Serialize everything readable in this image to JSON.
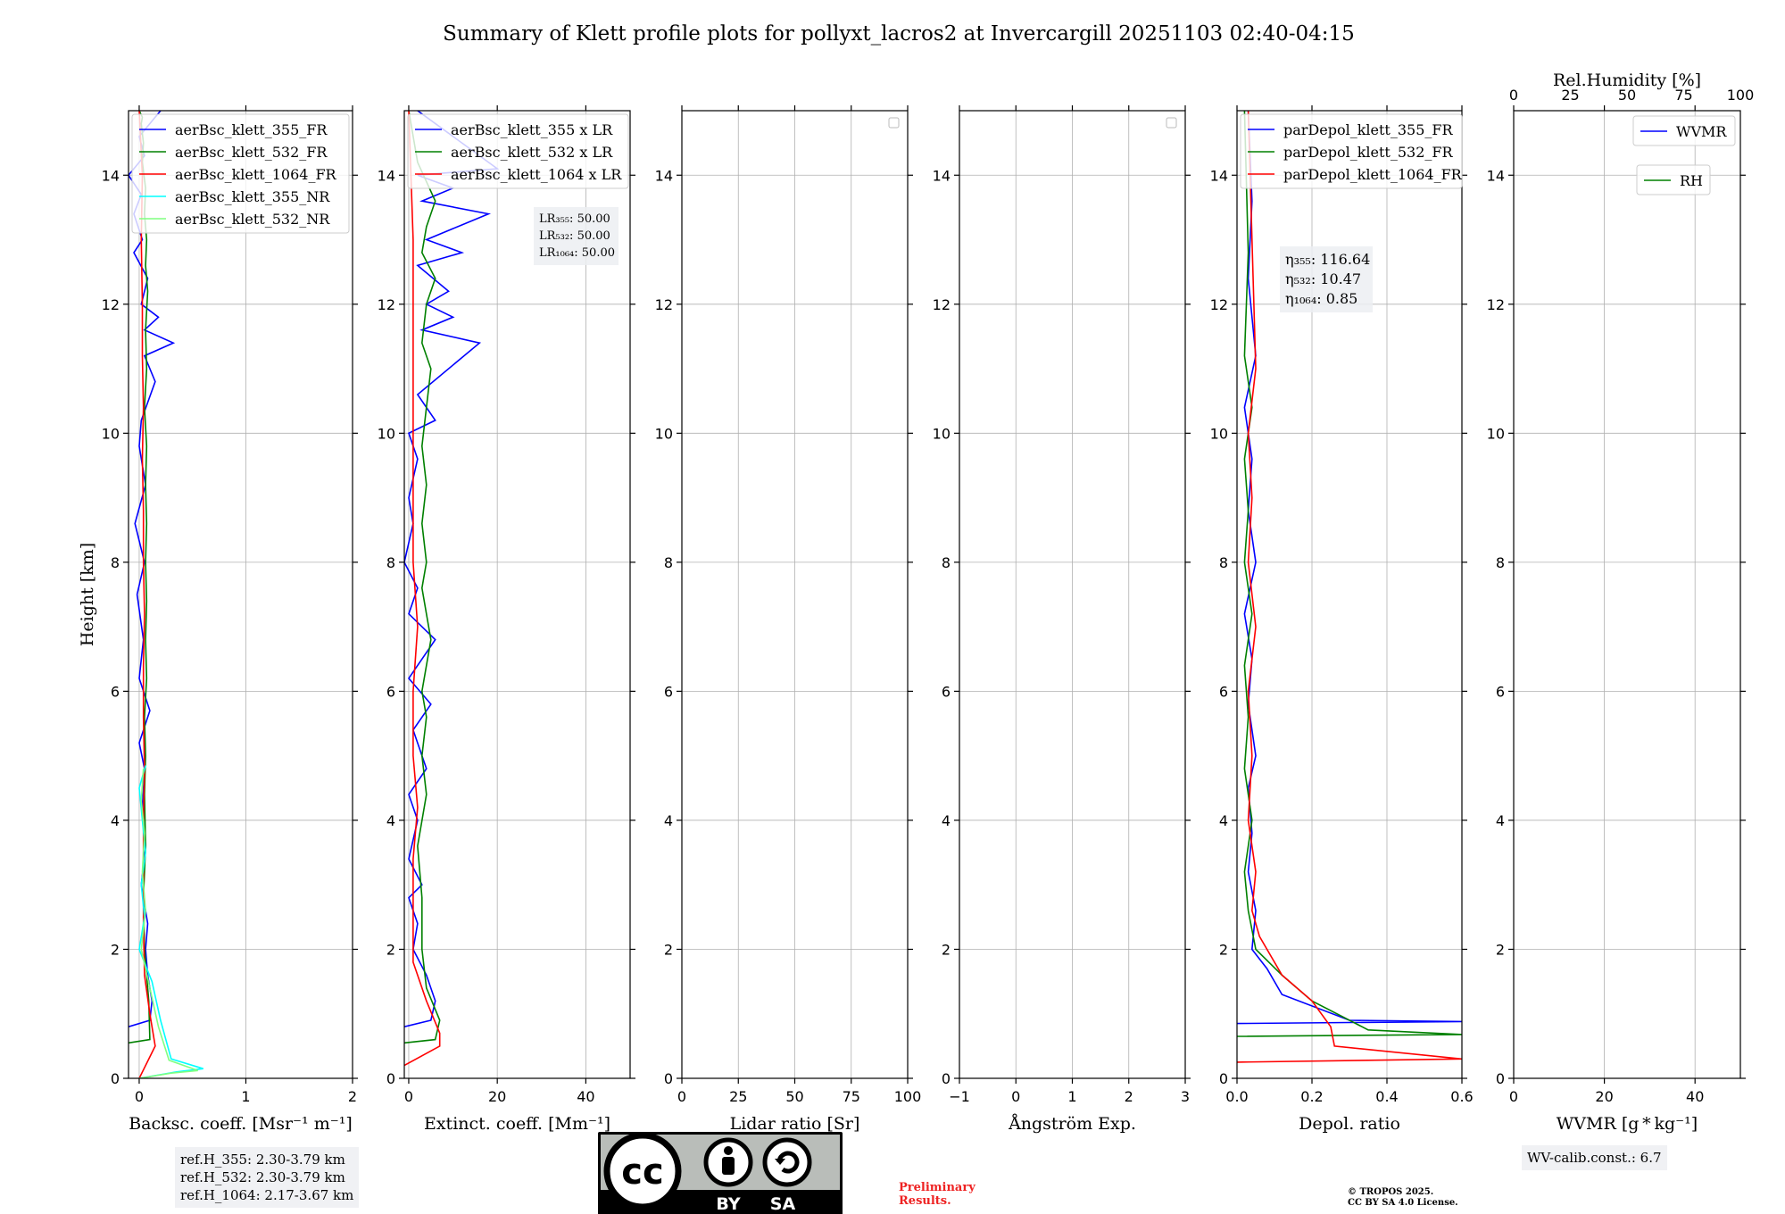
{
  "title": "Summary of Klett profile plots for pollyxt_lacros2 at Invercargill 20251103 02:40-04:15",
  "colors": {
    "blue": "#0000ff",
    "green": "#008000",
    "red": "#ff0000",
    "cyan": "#00ffff",
    "lightgreen": "#80ff80"
  },
  "chart_data": [
    {
      "id": "bsc",
      "type": "line",
      "ylabel": "Height [km]",
      "xlabel": "Backsc. coeff. [Msr⁻¹ m⁻¹]",
      "xlim": [
        -0.1,
        2
      ],
      "ylim": [
        0,
        15
      ],
      "xticks": [
        0,
        1,
        2
      ],
      "yticks": [
        0,
        2,
        4,
        6,
        8,
        10,
        12,
        14
      ],
      "legend": [
        "aerBsc_klett_355_FR",
        "aerBsc_klett_532_FR",
        "aerBsc_klett_1064_FR",
        "aerBsc_klett_355_NR",
        "aerBsc_klett_532_NR"
      ],
      "legend_colors": [
        "blue",
        "green",
        "red",
        "cyan",
        "lightgreen"
      ],
      "series": [
        {
          "name": "aerBsc_klett_355_FR",
          "color": "blue",
          "x": [
            -0.1,
            0.1,
            0.12,
            0.08,
            0.06,
            0.08,
            0.02,
            0.06,
            0.03,
            0.05,
            0.0,
            0.1,
            0.0,
            0.04,
            -0.02,
            0.05,
            -0.04,
            0.06,
            0.0,
            0.02,
            0.15,
            0.05,
            0.32,
            0.05,
            0.18,
            0.02,
            0.08,
            -0.05,
            0.03,
            -0.05,
            0.02,
            -0.1,
            0.05,
            0.0,
            0.2
          ],
          "y": [
            0.8,
            0.9,
            1.2,
            1.6,
            2.0,
            2.4,
            3.0,
            3.6,
            4.2,
            4.8,
            5.2,
            5.7,
            6.2,
            6.8,
            7.5,
            8.0,
            8.6,
            9.2,
            9.8,
            10.2,
            10.8,
            11.2,
            11.4,
            11.6,
            11.8,
            12.0,
            12.4,
            12.8,
            13.0,
            13.4,
            13.7,
            14.0,
            14.3,
            14.6,
            15.0
          ]
        },
        {
          "name": "aerBsc_klett_532_FR",
          "color": "green",
          "x": [
            -0.1,
            0.1,
            0.09,
            0.05,
            0.04,
            0.06,
            0.05,
            0.06,
            0.05,
            0.07,
            0.06,
            0.07,
            0.06,
            0.07,
            0.06,
            0.07,
            0.05,
            0.07,
            0.06,
            0.08,
            0.06,
            0.07,
            0.05,
            0.06,
            0.03,
            0.04,
            0.02,
            0.03,
            0.0
          ],
          "y": [
            0.55,
            0.6,
            1.2,
            2.0,
            2.8,
            3.6,
            4.4,
            5.0,
            5.6,
            6.2,
            6.8,
            7.4,
            8.0,
            8.6,
            9.2,
            9.8,
            10.4,
            11.0,
            11.6,
            12.2,
            12.6,
            13.0,
            13.4,
            13.8,
            14.2,
            14.5,
            14.8,
            14.9,
            15.0
          ]
        },
        {
          "name": "aerBsc_klett_1064_FR",
          "color": "red",
          "x": [
            0.0,
            0.15,
            0.1,
            0.05,
            0.04,
            0.04,
            0.04,
            0.05,
            0.04,
            0.04,
            0.05,
            0.04,
            0.04,
            0.03,
            0.04,
            0.03,
            0.03,
            0.02,
            0.03,
            0.0
          ],
          "y": [
            0.0,
            0.5,
            1.0,
            1.6,
            2.4,
            3.2,
            4.0,
            4.8,
            5.6,
            6.4,
            7.2,
            8.0,
            8.8,
            9.6,
            10.4,
            11.2,
            12.0,
            13.0,
            14.0,
            15.0
          ]
        },
        {
          "name": "aerBsc_klett_355_NR",
          "color": "cyan",
          "x": [
            0.0,
            0.35,
            0.6,
            0.3,
            0.2,
            0.12,
            0.0,
            0.05,
            0.02,
            0.06,
            0.03,
            0.0,
            0.06
          ],
          "y": [
            0.0,
            0.1,
            0.15,
            0.3,
            0.9,
            1.5,
            2.0,
            2.5,
            3.0,
            3.5,
            4.0,
            4.5,
            4.85
          ]
        },
        {
          "name": "aerBsc_klett_532_NR",
          "color": "lightgreen",
          "x": [
            0.0,
            0.3,
            0.55,
            0.28,
            0.18,
            0.1,
            0.02,
            0.06,
            0.03,
            0.05,
            0.02,
            0.04
          ],
          "y": [
            0.0,
            0.08,
            0.12,
            0.28,
            0.8,
            1.4,
            2.0,
            2.6,
            3.2,
            3.8,
            4.3,
            4.8
          ]
        }
      ]
    },
    {
      "id": "ext",
      "type": "line",
      "xlabel": "Extinct. coeff. [Mm⁻¹]",
      "xlim": [
        -1,
        50
      ],
      "ylim": [
        0,
        15
      ],
      "xticks": [
        0,
        20,
        40
      ],
      "yticks": [
        0,
        2,
        4,
        6,
        8,
        10,
        12,
        14
      ],
      "legend": [
        "aerBsc_klett_355 x LR",
        "aerBsc_klett_532 x LR",
        "aerBsc_klett_1064 x LR"
      ],
      "legend_colors": [
        "blue",
        "green",
        "red"
      ],
      "annotation": [
        "LR₃₅₅: 50.00",
        "LR₅₃₂: 50.00",
        "LR₁₀₆₄: 50.00"
      ],
      "series": [
        {
          "name": "aerBsc_klett_355 x LR",
          "color": "blue",
          "x": [
            -1,
            5,
            6,
            4,
            1,
            2,
            0,
            3,
            0,
            2,
            0,
            4,
            1,
            5,
            0,
            6,
            0,
            2,
            -1,
            1,
            0,
            2,
            0,
            6,
            2,
            16,
            3,
            10,
            4,
            9,
            2,
            12,
            4,
            18,
            3,
            10,
            2,
            20,
            2
          ],
          "y": [
            0.8,
            0.9,
            1.2,
            1.6,
            2.0,
            2.4,
            2.8,
            3.0,
            3.4,
            4.0,
            4.4,
            4.8,
            5.4,
            5.8,
            6.2,
            6.8,
            7.2,
            7.6,
            8.0,
            8.6,
            9.0,
            9.6,
            10.0,
            10.2,
            10.6,
            11.4,
            11.6,
            11.8,
            12.0,
            12.2,
            12.6,
            12.8,
            13.0,
            13.4,
            13.6,
            13.8,
            14.0,
            14.1,
            15.0
          ]
        },
        {
          "name": "aerBsc_klett_532 x LR",
          "color": "green",
          "x": [
            -1,
            6,
            7,
            4,
            3,
            3,
            2,
            4,
            3,
            4,
            3,
            4,
            5,
            4,
            3,
            4,
            3,
            4,
            3,
            4,
            5,
            3,
            4,
            6,
            3,
            4,
            6,
            2,
            0
          ],
          "y": [
            0.55,
            0.6,
            0.9,
            1.4,
            2.0,
            2.8,
            3.6,
            4.4,
            5.0,
            5.6,
            6.0,
            6.4,
            6.8,
            7.2,
            7.6,
            8.0,
            8.6,
            9.2,
            9.8,
            10.4,
            11.0,
            11.4,
            12.0,
            12.4,
            12.8,
            13.2,
            13.6,
            14.2,
            15.0
          ]
        },
        {
          "name": "aerBsc_klett_1064 x LR",
          "color": "red",
          "x": [
            -1,
            7,
            7,
            4,
            1,
            1,
            1,
            2,
            1,
            1,
            2,
            1,
            1,
            1,
            1,
            1,
            1,
            0
          ],
          "y": [
            0.2,
            0.5,
            0.7,
            1.2,
            1.8,
            2.6,
            3.4,
            4.2,
            5.0,
            6.0,
            7.0,
            8.0,
            9.0,
            10.0,
            11.0,
            12.0,
            13.0,
            15.0
          ]
        }
      ]
    },
    {
      "id": "lr",
      "type": "line",
      "xlabel": "Lidar ratio [Sr]",
      "xlim": [
        0,
        100
      ],
      "ylim": [
        0,
        15
      ],
      "xticks": [
        0,
        25,
        50,
        75,
        100
      ],
      "yticks": [
        0,
        2,
        4,
        6,
        8,
        10,
        12,
        14
      ],
      "legend": [],
      "legend_colors": [],
      "series": []
    },
    {
      "id": "ang",
      "type": "line",
      "xlabel": "Ångström Exp.",
      "xlim": [
        -1,
        3
      ],
      "ylim": [
        0,
        15
      ],
      "xticks": [
        -1,
        0,
        1,
        2,
        3
      ],
      "yticks": [
        0,
        2,
        4,
        6,
        8,
        10,
        12,
        14
      ],
      "legend": [],
      "legend_colors": [],
      "series": []
    },
    {
      "id": "dep",
      "type": "line",
      "xlabel": "Depol. ratio",
      "xlim": [
        0,
        0.6
      ],
      "ylim": [
        0,
        15
      ],
      "xticks": [
        0.0,
        0.2,
        0.4,
        0.6
      ],
      "yticks": [
        0,
        2,
        4,
        6,
        8,
        10,
        12,
        14
      ],
      "legend": [
        "parDepol_klett_355_FR",
        "parDepol_klett_532_FR",
        "parDepol_klett_1064_FR"
      ],
      "legend_colors": [
        "blue",
        "green",
        "red"
      ],
      "annotation": [
        "η₃₅₅: 116.64",
        "η₅₃₂: 10.47",
        "η₁₀₆₄: 0.85"
      ],
      "series": [
        {
          "name": "parDepol_klett_355_FR",
          "color": "blue",
          "x": [
            0.0,
            0.6,
            0.3,
            0.12,
            0.08,
            0.04,
            0.05,
            0.03,
            0.04,
            0.03,
            0.05,
            0.03,
            0.04,
            0.02,
            0.05,
            0.03,
            0.04,
            0.02,
            0.05,
            0.03,
            0.04,
            0.03
          ],
          "y": [
            0.85,
            0.88,
            0.9,
            1.3,
            1.7,
            2.0,
            2.6,
            3.2,
            3.8,
            4.5,
            5.0,
            5.8,
            6.5,
            7.2,
            8.0,
            8.8,
            9.6,
            10.4,
            11.2,
            12.4,
            13.6,
            15.0
          ]
        },
        {
          "name": "parDepol_klett_532_FR",
          "color": "green",
          "x": [
            0.0,
            0.6,
            0.35,
            0.2,
            0.12,
            0.05,
            0.03,
            0.02,
            0.04,
            0.02,
            0.03,
            0.02,
            0.04,
            0.02,
            0.03,
            0.02,
            0.04,
            0.02,
            0.03,
            0.02
          ],
          "y": [
            0.65,
            0.68,
            0.75,
            1.2,
            1.6,
            2.0,
            2.6,
            3.2,
            4.0,
            4.8,
            5.6,
            6.4,
            7.2,
            8.0,
            8.8,
            9.6,
            10.4,
            11.2,
            12.8,
            15.0
          ]
        },
        {
          "name": "parDepol_klett_1064_FR",
          "color": "red",
          "x": [
            0.0,
            0.6,
            0.26,
            0.25,
            0.2,
            0.12,
            0.06,
            0.04,
            0.05,
            0.03,
            0.04,
            0.03,
            0.05,
            0.03,
            0.04,
            0.03,
            0.05,
            0.03
          ],
          "y": [
            0.25,
            0.3,
            0.5,
            0.8,
            1.2,
            1.6,
            2.2,
            2.6,
            3.2,
            4.0,
            5.0,
            6.0,
            7.0,
            8.0,
            9.0,
            10.0,
            11.0,
            15.0
          ]
        }
      ]
    },
    {
      "id": "wv",
      "type": "line",
      "xlabel": "WVMR [g * kg⁻¹]",
      "x2label": "Rel.Humidity [%]",
      "x2lim": [
        0,
        100
      ],
      "x2ticks": [
        0,
        25,
        50,
        75,
        100
      ],
      "xlim": [
        0,
        50
      ],
      "ylim": [
        0,
        15
      ],
      "xticks": [
        0,
        20,
        40
      ],
      "yticks": [
        0,
        2,
        4,
        6,
        8,
        10,
        12,
        14
      ],
      "legend": [
        "WVMR"
      ],
      "legend_colors": [
        "blue"
      ],
      "legend2": [
        "RH"
      ],
      "legend2_colors": [
        "green"
      ],
      "series": []
    }
  ],
  "ref_heights": [
    "ref.H_355: 2.30-3.79 km",
    "ref.H_532: 2.30-3.79 km",
    "ref.H_1064: 2.17-3.67 km"
  ],
  "wv_calib": "WV-calib.const.: 6.7",
  "preliminary": [
    "Preliminary",
    "Results."
  ],
  "copyright": [
    "© TROPOS 2025.",
    "CC BY SA 4.0 License."
  ],
  "license_badge": {
    "cc": "cc",
    "by": "BY",
    "sa": "SA"
  }
}
